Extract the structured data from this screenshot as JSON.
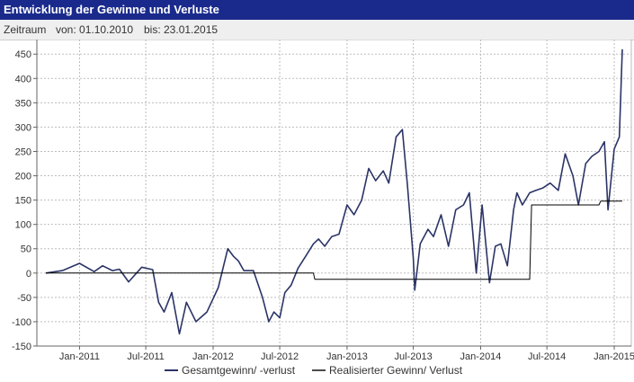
{
  "header": {
    "title": "Entwicklung der Gewinne und Verluste"
  },
  "period": {
    "label": "Zeitraum",
    "from": "von: 01.10.2010",
    "to": "bis: 23.01.2015"
  },
  "colors": {
    "title_bg": "#1a2a8c",
    "series_total": "#2b3466",
    "series_realized": "#000000"
  },
  "chart_data": {
    "type": "line",
    "title": "",
    "xlabel": "",
    "ylabel": "",
    "ylim": [
      -150,
      480
    ],
    "yticks": [
      -150,
      -100,
      -50,
      0,
      50,
      100,
      150,
      200,
      250,
      300,
      350,
      400,
      450
    ],
    "ytick_labels": [
      "-150",
      "-100",
      "-50",
      "0",
      "50",
      "100",
      "150",
      "200",
      "250",
      "300",
      "350",
      "400",
      "450"
    ],
    "xlim": [
      "2010-10-01",
      "2015-01-23"
    ],
    "xticks": [
      "2011-01-01",
      "2011-07-01",
      "2012-01-01",
      "2012-07-01",
      "2013-01-01",
      "2013-07-01",
      "2014-01-01",
      "2014-07-01",
      "2015-01-01"
    ],
    "xtick_labels": [
      "Jan-2011",
      "Jul-2011",
      "Jan-2012",
      "Jul-2012",
      "Jan-2013",
      "Jul-2013",
      "Jan-2014",
      "Jul-2014",
      "Jan-2015"
    ],
    "grid": true,
    "legend_position": "bottom",
    "series": [
      {
        "name": "Gesamtgewinn/ -verlust",
        "x": [
          "2010-10-01",
          "2010-11-15",
          "2011-01-01",
          "2011-02-10",
          "2011-03-05",
          "2011-04-01",
          "2011-04-20",
          "2011-05-15",
          "2011-06-20",
          "2011-07-20",
          "2011-08-05",
          "2011-08-20",
          "2011-09-10",
          "2011-10-01",
          "2011-10-20",
          "2011-11-15",
          "2011-12-15",
          "2012-01-15",
          "2012-02-10",
          "2012-02-25",
          "2012-03-10",
          "2012-03-25",
          "2012-04-20",
          "2012-05-15",
          "2012-06-01",
          "2012-06-15",
          "2012-07-01",
          "2012-07-15",
          "2012-08-01",
          "2012-08-20",
          "2012-09-10",
          "2012-10-01",
          "2012-10-15",
          "2012-11-01",
          "2012-11-20",
          "2012-12-10",
          "2013-01-01",
          "2013-01-20",
          "2013-02-10",
          "2013-03-01",
          "2013-03-20",
          "2013-04-10",
          "2013-04-25",
          "2013-05-15",
          "2013-06-01",
          "2013-06-15",
          "2013-07-01",
          "2013-07-05",
          "2013-07-20",
          "2013-08-10",
          "2013-08-25",
          "2013-09-15",
          "2013-10-05",
          "2013-10-25",
          "2013-11-15",
          "2013-12-01",
          "2013-12-20",
          "2014-01-05",
          "2014-01-25",
          "2014-02-10",
          "2014-02-25",
          "2014-03-15",
          "2014-04-01",
          "2014-04-10",
          "2014-04-25",
          "2014-05-15",
          "2014-06-01",
          "2014-06-20",
          "2014-07-10",
          "2014-08-01",
          "2014-08-20",
          "2014-09-10",
          "2014-09-25",
          "2014-10-15",
          "2014-11-01",
          "2014-11-20",
          "2014-12-05",
          "2014-12-15",
          "2015-01-01",
          "2015-01-15",
          "2015-01-23"
        ],
        "y": [
          0,
          5,
          20,
          3,
          15,
          5,
          8,
          -18,
          12,
          7,
          -60,
          -80,
          -40,
          -125,
          -60,
          -100,
          -80,
          -30,
          50,
          35,
          25,
          5,
          5,
          -50,
          -100,
          -80,
          -92,
          -40,
          -25,
          10,
          35,
          60,
          70,
          55,
          75,
          80,
          140,
          120,
          150,
          215,
          190,
          210,
          185,
          280,
          295,
          180,
          30,
          -35,
          60,
          90,
          75,
          120,
          55,
          130,
          140,
          165,
          0,
          140,
          -20,
          55,
          60,
          15,
          130,
          165,
          140,
          165,
          170,
          175,
          185,
          170,
          245,
          200,
          140,
          225,
          240,
          250,
          270,
          130,
          255,
          280,
          460
        ]
      },
      {
        "name": "Realisierter Gewinn/ Verlust",
        "x": [
          "2010-10-01",
          "2012-10-01",
          "2012-10-05",
          "2014-05-15",
          "2014-05-20",
          "2014-06-15",
          "2014-06-20",
          "2014-11-20",
          "2014-11-25",
          "2015-01-23"
        ],
        "y": [
          0,
          0,
          -13,
          -13,
          140,
          140,
          140,
          140,
          148,
          148
        ]
      }
    ]
  }
}
